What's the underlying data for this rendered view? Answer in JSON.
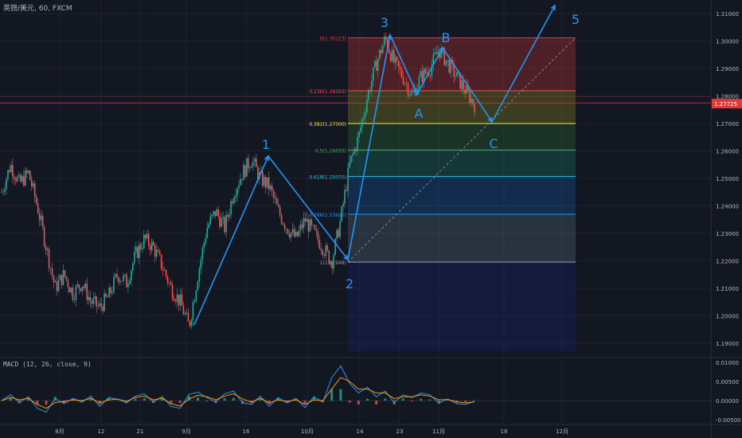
{
  "header": {
    "symbol": "英镑/美元, 60, FXCM"
  },
  "macd_panel": {
    "title": "MACD (12, 26, close, 9)"
  },
  "colors": {
    "background": "#131722",
    "grid": "#1e2230",
    "up": "#26a69a",
    "down": "#ef5350",
    "wave": "#2196f3",
    "price_line": "#e53935",
    "macd_line": "#2196f3",
    "signal_line": "#ff9800"
  },
  "chart_data": [
    {
      "type": "candlestick",
      "title": "",
      "ylim": [
        1.185,
        1.315
      ],
      "y_ticks": [
        "1.31000",
        "1.30000",
        "1.29000",
        "1.28000",
        "1.27000",
        "1.26000",
        "1.25000",
        "1.24000",
        "1.23000",
        "1.22000",
        "1.21000",
        "1.20000",
        "1.19000"
      ],
      "x_ticks": [
        "8月",
        "12",
        "21",
        "9月",
        "16",
        "10月",
        "14",
        "23",
        "11月",
        "18",
        "12月"
      ],
      "current_price": {
        "label": "1.27725",
        "value": 1.27725
      },
      "horizontal_line": 1.2775,
      "price_path": [
        {
          "x": "start",
          "y": 1.245
        },
        {
          "x": "",
          "y": 1.255
        },
        {
          "x": "",
          "y": 1.248
        },
        {
          "x": "",
          "y": 1.252
        },
        {
          "x": "",
          "y": 1.24
        },
        {
          "x": "",
          "y": 1.225
        },
        {
          "x": "",
          "y": 1.21
        },
        {
          "x": "",
          "y": 1.215
        },
        {
          "x": "",
          "y": 1.208
        },
        {
          "x": "",
          "y": 1.212
        },
        {
          "x": "",
          "y": 1.205
        },
        {
          "x": "",
          "y": 1.203
        },
        {
          "x": "",
          "y": 1.207
        },
        {
          "x": "",
          "y": 1.215
        },
        {
          "x": "",
          "y": 1.212
        },
        {
          "x": "",
          "y": 1.222
        },
        {
          "x": "",
          "y": 1.228
        },
        {
          "x": "",
          "y": 1.225
        },
        {
          "x": "",
          "y": 1.218
        },
        {
          "x": "",
          "y": 1.21
        },
        {
          "x": "",
          "y": 1.205
        },
        {
          "x": "",
          "y": 1.196
        },
        {
          "x": "",
          "y": 1.215
        },
        {
          "x": "",
          "y": 1.232
        },
        {
          "x": "",
          "y": 1.238
        },
        {
          "x": "",
          "y": 1.232
        },
        {
          "x": "",
          "y": 1.245
        },
        {
          "x": "",
          "y": 1.252
        },
        {
          "x": "",
          "y": 1.257
        },
        {
          "x": "",
          "y": 1.25
        },
        {
          "x": "",
          "y": 1.247
        },
        {
          "x": "",
          "y": 1.238
        },
        {
          "x": "",
          "y": 1.232
        },
        {
          "x": "",
          "y": 1.228
        },
        {
          "x": "",
          "y": 1.235
        },
        {
          "x": "",
          "y": 1.23
        },
        {
          "x": "",
          "y": 1.225
        },
        {
          "x": "",
          "y": 1.2195
        },
        {
          "x": "",
          "y": 1.235
        },
        {
          "x": "",
          "y": 1.255
        },
        {
          "x": "",
          "y": 1.265
        },
        {
          "x": "",
          "y": 1.28
        },
        {
          "x": "",
          "y": 1.292
        },
        {
          "x": "",
          "y": 1.301
        },
        {
          "x": "",
          "y": 1.292
        },
        {
          "x": "",
          "y": 1.287
        },
        {
          "x": "",
          "y": 1.28
        },
        {
          "x": "",
          "y": 1.287
        },
        {
          "x": "",
          "y": 1.29
        },
        {
          "x": "",
          "y": 1.297
        },
        {
          "x": "",
          "y": 1.292
        },
        {
          "x": "",
          "y": 1.287
        },
        {
          "x": "",
          "y": 1.282
        },
        {
          "x": "",
          "y": 1.277
        }
      ],
      "fibonacci": {
        "levels": [
          {
            "label": "0(1.30123)",
            "ratio": 0,
            "value": 1.30123,
            "color": "#e53935"
          },
          {
            "label": "0.236(1.28193)",
            "ratio": 0.236,
            "value": 1.28193,
            "color": "#ef5350"
          },
          {
            "label": "0.382(1.27000)",
            "ratio": 0.382,
            "value": 1.27,
            "color": "#ffeb3b"
          },
          {
            "label": "0.5(1.26035)",
            "ratio": 0.5,
            "value": 1.26035,
            "color": "#4caf50"
          },
          {
            "label": "0.618(1.25070)",
            "ratio": 0.618,
            "value": 1.2507,
            "color": "#26c6da"
          },
          {
            "label": "0.786(1.23696)",
            "ratio": 0.786,
            "value": 1.23696,
            "color": "#2196f3"
          },
          {
            "label": "1(1.21948)",
            "ratio": 1,
            "value": 1.21948,
            "color": "#9e9e9e"
          }
        ],
        "bands": [
          {
            "from": 1.30123,
            "to": 1.28193,
            "color": "#e53935"
          },
          {
            "from": 1.28193,
            "to": 1.27,
            "color": "#a0a020"
          },
          {
            "from": 1.27,
            "to": 1.26035,
            "color": "#2e7d32"
          },
          {
            "from": 1.26035,
            "to": 1.2507,
            "color": "#1b8a6b"
          },
          {
            "from": 1.2507,
            "to": 1.23696,
            "color": "#1565c0"
          },
          {
            "from": 1.23696,
            "to": 1.21948,
            "color": "#607d8b"
          },
          {
            "from": 1.21948,
            "to": 1.187,
            "color": "#1a237e"
          }
        ]
      },
      "elliott_waves": [
        {
          "label": "1",
          "value": 1.257
        },
        {
          "label": "2",
          "value": 1.2195
        },
        {
          "label": "3",
          "value": 1.301
        },
        {
          "label": "A",
          "value": 1.28
        },
        {
          "label": "B",
          "value": 1.297
        },
        {
          "label": "C",
          "value": 1.27
        },
        {
          "label": "5",
          "value": 1.314
        }
      ]
    },
    {
      "type": "line",
      "title": "",
      "ylim": [
        -0.006,
        0.011
      ],
      "y_ticks": [
        "0.01000",
        "0.00500",
        "0.00000",
        "-0.00500"
      ],
      "series": [
        {
          "values": [
            0,
            0.0015,
            -0.0005,
            0.001,
            -0.002,
            -0.003,
            0.0005,
            -0.0008,
            0.0006,
            -0.0004,
            0.0012,
            -0.0015,
            0.0008,
            0.0004,
            -0.0006,
            0.0012,
            0.0018,
            -0.0004,
            0.0011,
            -0.0015,
            -0.002,
            0.0016,
            0.0022,
            0.0008,
            -0.0004,
            0.0018,
            0.0025,
            -0.0005,
            -0.001,
            0.0012,
            -0.0015,
            0.0008,
            -0.0006,
            0.0006,
            -0.0018,
            0.001,
            -0.0004,
            0.006,
            0.009,
            0.0045,
            0.002,
            0.0035,
            0.001,
            0.0025,
            -0.0005,
            0.0015,
            0.0008,
            0.002,
            0.0015,
            -0.0006,
            0.0004,
            -0.0008,
            -0.001,
            -0.0002
          ]
        },
        {
          "values": [
            0,
            0.0008,
            0.0002,
            0.0006,
            -0.001,
            -0.002,
            -0.0005,
            -0.0002,
            0.0002,
            0,
            0.0006,
            -0.0006,
            0.0002,
            0.0004,
            -0.0002,
            0.0008,
            0.0012,
            0.0002,
            0.0006,
            -0.0008,
            -0.0014,
            0.0004,
            0.0014,
            0.001,
            0.0002,
            0.0012,
            0.0018,
            0.0004,
            -0.0004,
            0.0006,
            -0.0006,
            0.0002,
            -0.0002,
            0.0002,
            -0.001,
            0.0002,
            0,
            0.003,
            0.006,
            0.005,
            0.003,
            0.003,
            0.002,
            0.002,
            0.0005,
            0.001,
            0.001,
            0.0015,
            0.0012,
            0.0002,
            0.0003,
            -0.0003,
            -0.0006,
            -0.0003
          ]
        }
      ]
    }
  ]
}
